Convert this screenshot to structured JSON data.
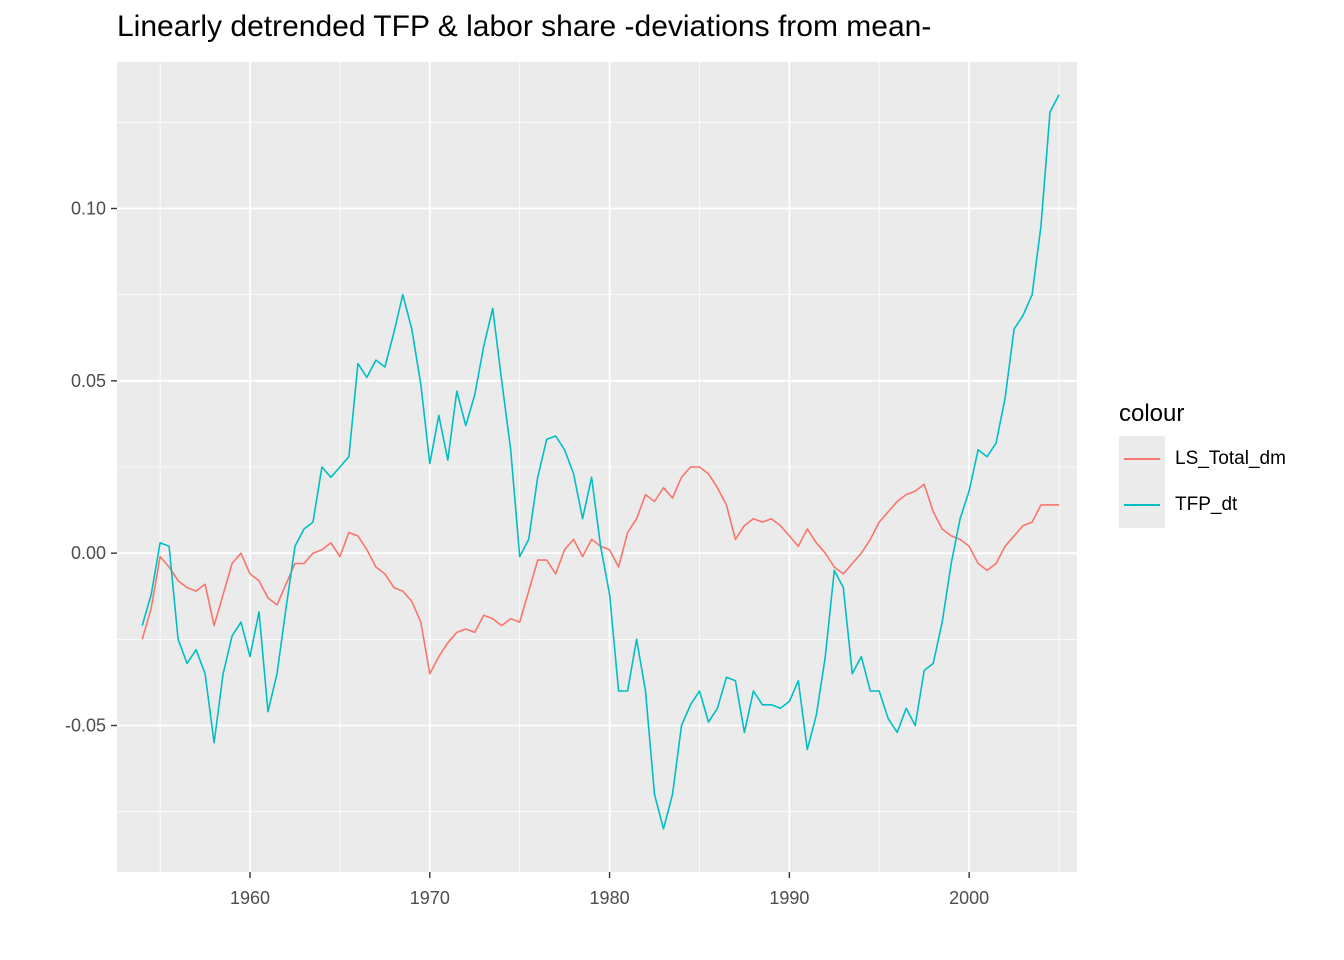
{
  "chart_data": {
    "type": "line",
    "title": "Linearly detrended TFP & labor share -deviations from mean-",
    "xlabel": "",
    "ylabel": "",
    "xlim": [
      1952.6,
      2006.0
    ],
    "ylim": [
      -0.0925,
      0.1425
    ],
    "x_ticks": [
      1960,
      1970,
      1980,
      1990,
      2000
    ],
    "x_tick_labels": [
      "1960",
      "1970",
      "1980",
      "1990",
      "2000"
    ],
    "y_ticks": [
      -0.05,
      0,
      0.05,
      0.1
    ],
    "y_tick_labels": [
      "-0.05",
      "0.00",
      "0.05",
      "0.10"
    ],
    "grid": true,
    "legend_title": "colour",
    "legend_position": "right",
    "series": [
      {
        "name": "LS_Total_dm",
        "color": "#F8766D",
        "points": [
          [
            1954.0,
            -0.025
          ],
          [
            1954.5,
            -0.016
          ],
          [
            1955.0,
            -0.001
          ],
          [
            1955.5,
            -0.004
          ],
          [
            1956.0,
            -0.008
          ],
          [
            1956.5,
            -0.01
          ],
          [
            1957.0,
            -0.011
          ],
          [
            1957.5,
            -0.009
          ],
          [
            1958.0,
            -0.021
          ],
          [
            1958.5,
            -0.012
          ],
          [
            1959.0,
            -0.003
          ],
          [
            1959.5,
            0.0
          ],
          [
            1960.0,
            -0.006
          ],
          [
            1960.5,
            -0.008
          ],
          [
            1961.0,
            -0.013
          ],
          [
            1961.5,
            -0.015
          ],
          [
            1962.0,
            -0.009
          ],
          [
            1962.5,
            -0.003
          ],
          [
            1963.0,
            -0.003
          ],
          [
            1963.5,
            0.0
          ],
          [
            1964.0,
            0.001
          ],
          [
            1964.5,
            0.003
          ],
          [
            1965.0,
            -0.001
          ],
          [
            1965.5,
            0.006
          ],
          [
            1966.0,
            0.005
          ],
          [
            1966.5,
            0.001
          ],
          [
            1967.0,
            -0.004
          ],
          [
            1967.5,
            -0.006
          ],
          [
            1968.0,
            -0.01
          ],
          [
            1968.5,
            -0.011
          ],
          [
            1969.0,
            -0.014
          ],
          [
            1969.5,
            -0.02
          ],
          [
            1970.0,
            -0.035
          ],
          [
            1970.5,
            -0.03
          ],
          [
            1971.0,
            -0.026
          ],
          [
            1971.5,
            -0.023
          ],
          [
            1972.0,
            -0.022
          ],
          [
            1972.5,
            -0.023
          ],
          [
            1973.0,
            -0.018
          ],
          [
            1973.5,
            -0.019
          ],
          [
            1974.0,
            -0.021
          ],
          [
            1974.5,
            -0.019
          ],
          [
            1975.0,
            -0.02
          ],
          [
            1975.5,
            -0.011
          ],
          [
            1976.0,
            -0.002
          ],
          [
            1976.5,
            -0.002
          ],
          [
            1977.0,
            -0.006
          ],
          [
            1977.5,
            0.001
          ],
          [
            1978.0,
            0.004
          ],
          [
            1978.5,
            -0.001
          ],
          [
            1979.0,
            0.004
          ],
          [
            1979.5,
            0.002
          ],
          [
            1980.0,
            0.001
          ],
          [
            1980.5,
            -0.004
          ],
          [
            1981.0,
            0.006
          ],
          [
            1981.5,
            0.01
          ],
          [
            1982.0,
            0.017
          ],
          [
            1982.5,
            0.015
          ],
          [
            1983.0,
            0.019
          ],
          [
            1983.5,
            0.016
          ],
          [
            1984.0,
            0.022
          ],
          [
            1984.5,
            0.025
          ],
          [
            1985.0,
            0.025
          ],
          [
            1985.5,
            0.023
          ],
          [
            1986.0,
            0.019
          ],
          [
            1986.5,
            0.014
          ],
          [
            1987.0,
            0.004
          ],
          [
            1987.5,
            0.008
          ],
          [
            1988.0,
            0.01
          ],
          [
            1988.5,
            0.009
          ],
          [
            1989.0,
            0.01
          ],
          [
            1989.5,
            0.008
          ],
          [
            1990.0,
            0.005
          ],
          [
            1990.5,
            0.002
          ],
          [
            1991.0,
            0.007
          ],
          [
            1991.5,
            0.003
          ],
          [
            1992.0,
            0.0
          ],
          [
            1992.5,
            -0.004
          ],
          [
            1993.0,
            -0.006
          ],
          [
            1993.5,
            -0.003
          ],
          [
            1994.0,
            0.0
          ],
          [
            1994.5,
            0.004
          ],
          [
            1995.0,
            0.009
          ],
          [
            1995.5,
            0.012
          ],
          [
            1996.0,
            0.015
          ],
          [
            1996.5,
            0.017
          ],
          [
            1997.0,
            0.018
          ],
          [
            1997.5,
            0.02
          ],
          [
            1998.0,
            0.012
          ],
          [
            1998.5,
            0.007
          ],
          [
            1999.0,
            0.005
          ],
          [
            1999.5,
            0.004
          ],
          [
            2000.0,
            0.002
          ],
          [
            2000.5,
            -0.003
          ],
          [
            2001.0,
            -0.005
          ],
          [
            2001.5,
            -0.003
          ],
          [
            2002.0,
            0.002
          ],
          [
            2002.5,
            0.005
          ],
          [
            2003.0,
            0.008
          ],
          [
            2003.5,
            0.009
          ],
          [
            2004.0,
            0.014
          ],
          [
            2004.5,
            0.014
          ],
          [
            2005.0,
            0.014
          ]
        ]
      },
      {
        "name": "TFP_dt",
        "color": "#00BFC4",
        "points": [
          [
            1954.0,
            -0.021
          ],
          [
            1954.5,
            -0.012
          ],
          [
            1955.0,
            0.003
          ],
          [
            1955.5,
            0.002
          ],
          [
            1956.0,
            -0.025
          ],
          [
            1956.5,
            -0.032
          ],
          [
            1957.0,
            -0.028
          ],
          [
            1957.5,
            -0.035
          ],
          [
            1958.0,
            -0.055
          ],
          [
            1958.5,
            -0.035
          ],
          [
            1959.0,
            -0.024
          ],
          [
            1959.5,
            -0.02
          ],
          [
            1960.0,
            -0.03
          ],
          [
            1960.5,
            -0.017
          ],
          [
            1961.0,
            -0.046
          ],
          [
            1961.5,
            -0.035
          ],
          [
            1962.0,
            -0.016
          ],
          [
            1962.5,
            0.002
          ],
          [
            1963.0,
            0.007
          ],
          [
            1963.5,
            0.009
          ],
          [
            1964.0,
            0.025
          ],
          [
            1964.5,
            0.022
          ],
          [
            1965.0,
            0.025
          ],
          [
            1965.5,
            0.028
          ],
          [
            1966.0,
            0.055
          ],
          [
            1966.5,
            0.051
          ],
          [
            1967.0,
            0.056
          ],
          [
            1967.5,
            0.054
          ],
          [
            1968.0,
            0.064
          ],
          [
            1968.5,
            0.075
          ],
          [
            1969.0,
            0.065
          ],
          [
            1969.5,
            0.049
          ],
          [
            1970.0,
            0.026
          ],
          [
            1970.5,
            0.04
          ],
          [
            1971.0,
            0.027
          ],
          [
            1971.5,
            0.047
          ],
          [
            1972.0,
            0.037
          ],
          [
            1972.5,
            0.046
          ],
          [
            1973.0,
            0.06
          ],
          [
            1973.5,
            0.071
          ],
          [
            1974.0,
            0.05
          ],
          [
            1974.5,
            0.03
          ],
          [
            1975.0,
            -0.001
          ],
          [
            1975.5,
            0.004
          ],
          [
            1976.0,
            0.022
          ],
          [
            1976.5,
            0.033
          ],
          [
            1977.0,
            0.034
          ],
          [
            1977.5,
            0.03
          ],
          [
            1978.0,
            0.023
          ],
          [
            1978.5,
            0.01
          ],
          [
            1979.0,
            0.022
          ],
          [
            1979.5,
            0.002
          ],
          [
            1980.0,
            -0.012
          ],
          [
            1980.5,
            -0.04
          ],
          [
            1981.0,
            -0.04
          ],
          [
            1981.5,
            -0.025
          ],
          [
            1982.0,
            -0.04
          ],
          [
            1982.5,
            -0.07
          ],
          [
            1983.0,
            -0.08
          ],
          [
            1983.5,
            -0.07
          ],
          [
            1984.0,
            -0.05
          ],
          [
            1984.5,
            -0.044
          ],
          [
            1985.0,
            -0.04
          ],
          [
            1985.5,
            -0.049
          ],
          [
            1986.0,
            -0.045
          ],
          [
            1986.5,
            -0.036
          ],
          [
            1987.0,
            -0.037
          ],
          [
            1987.5,
            -0.052
          ],
          [
            1988.0,
            -0.04
          ],
          [
            1988.5,
            -0.044
          ],
          [
            1989.0,
            -0.044
          ],
          [
            1989.5,
            -0.045
          ],
          [
            1990.0,
            -0.043
          ],
          [
            1990.5,
            -0.037
          ],
          [
            1991.0,
            -0.057
          ],
          [
            1991.5,
            -0.047
          ],
          [
            1992.0,
            -0.03
          ],
          [
            1992.5,
            -0.005
          ],
          [
            1993.0,
            -0.01
          ],
          [
            1993.5,
            -0.035
          ],
          [
            1994.0,
            -0.03
          ],
          [
            1994.5,
            -0.04
          ],
          [
            1995.0,
            -0.04
          ],
          [
            1995.5,
            -0.048
          ],
          [
            1996.0,
            -0.052
          ],
          [
            1996.5,
            -0.045
          ],
          [
            1997.0,
            -0.05
          ],
          [
            1997.5,
            -0.034
          ],
          [
            1998.0,
            -0.032
          ],
          [
            1998.5,
            -0.02
          ],
          [
            1999.0,
            -0.003
          ],
          [
            1999.5,
            0.01
          ],
          [
            2000.0,
            0.018
          ],
          [
            2000.5,
            0.03
          ],
          [
            2001.0,
            0.028
          ],
          [
            2001.5,
            0.032
          ],
          [
            2002.0,
            0.045
          ],
          [
            2002.5,
            0.065
          ],
          [
            2003.0,
            0.069
          ],
          [
            2003.5,
            0.075
          ],
          [
            2004.0,
            0.095
          ],
          [
            2004.5,
            0.128
          ],
          [
            2005.0,
            0.133
          ]
        ]
      }
    ]
  }
}
